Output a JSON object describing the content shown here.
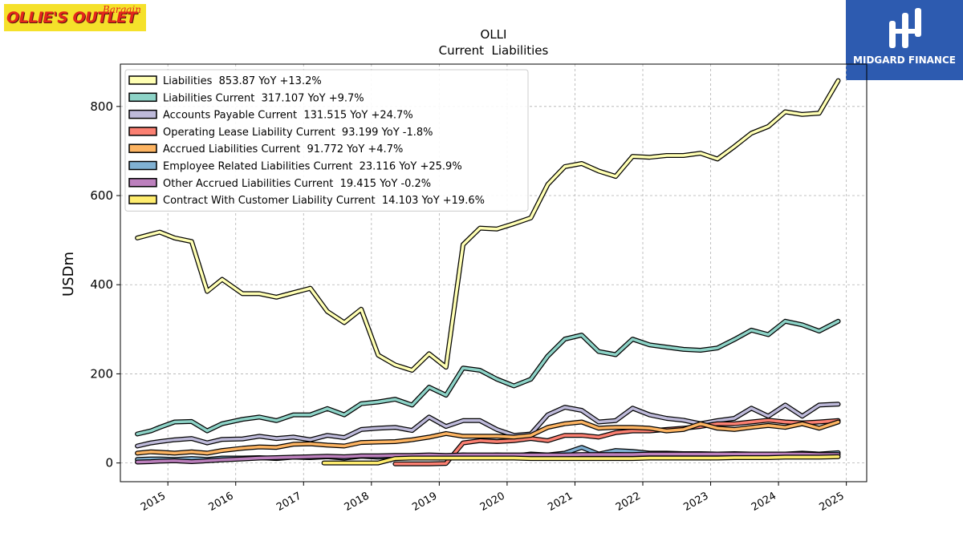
{
  "header": {
    "left_logo_main": "OLLIE'S OUTLET",
    "left_logo_script": "Bargain",
    "right_logo_name": "MIDGARD FINANCE"
  },
  "chart_data": {
    "type": "line",
    "title": "OLLI",
    "subtitle": "Current  Liabilities",
    "xlabel": "",
    "ylabel": "USDm",
    "xlim": [
      2014.3,
      2025.3
    ],
    "ylim": [
      -42,
      895
    ],
    "grid": true,
    "legend_position": "top-left",
    "x_ticks": [
      2015,
      2016,
      2017,
      2018,
      2019,
      2020,
      2021,
      2022,
      2023,
      2024,
      2025
    ],
    "x_tick_labels": [
      "2015",
      "2016",
      "2017",
      "2018",
      "2019",
      "2020",
      "2021",
      "2022",
      "2023",
      "2024",
      "2025"
    ],
    "y_ticks": [
      0,
      200,
      400,
      600,
      800
    ],
    "y_tick_labels": [
      "0",
      "200",
      "400",
      "600",
      "800"
    ],
    "series": [
      {
        "name": "Liabilities",
        "legend": "Liabilities  853.87 YoY +13.2%",
        "color": "#ffffb3",
        "x": [
          2014.55,
          2014.75,
          2014.88,
          2015.1,
          2015.35,
          2015.58,
          2015.8,
          2016.1,
          2016.35,
          2016.6,
          2016.85,
          2017.1,
          2017.35,
          2017.6,
          2017.85,
          2018.1,
          2018.35,
          2018.6,
          2018.85,
          2019.1,
          2019.35,
          2019.6,
          2019.85,
          2020.1,
          2020.35,
          2020.6,
          2020.85,
          2021.1,
          2021.35,
          2021.6,
          2021.85,
          2022.1,
          2022.35,
          2022.6,
          2022.85,
          2023.1,
          2023.35,
          2023.6,
          2023.85,
          2024.1,
          2024.35,
          2024.6,
          2024.88
        ],
        "y": [
          505,
          513,
          518,
          505,
          497,
          385,
          412,
          380,
          380,
          372,
          382,
          392,
          340,
          315,
          345,
          242,
          220,
          208,
          245,
          215,
          490,
          527,
          525,
          537,
          550,
          625,
          665,
          672,
          655,
          643,
          688,
          686,
          690,
          690,
          695,
          682,
          710,
          740,
          755,
          788,
          782,
          785,
          858
        ]
      },
      {
        "name": "Liabilities Current",
        "legend": "Liabilities Current  317.107 YoY +9.7%",
        "color": "#8dd3c7",
        "x": [
          2014.55,
          2014.75,
          2014.88,
          2015.1,
          2015.35,
          2015.58,
          2015.8,
          2016.1,
          2016.35,
          2016.6,
          2016.85,
          2017.1,
          2017.35,
          2017.6,
          2017.85,
          2018.1,
          2018.35,
          2018.6,
          2018.85,
          2019.1,
          2019.35,
          2019.6,
          2019.85,
          2020.1,
          2020.35,
          2020.6,
          2020.85,
          2021.1,
          2021.35,
          2021.6,
          2021.85,
          2022.1,
          2022.35,
          2022.6,
          2022.85,
          2023.1,
          2023.35,
          2023.6,
          2023.85,
          2024.1,
          2024.35,
          2024.6,
          2024.88
        ],
        "y": [
          65,
          72,
          80,
          92,
          93,
          72,
          88,
          98,
          103,
          95,
          108,
          108,
          122,
          108,
          133,
          137,
          143,
          130,
          170,
          152,
          213,
          208,
          188,
          173,
          188,
          240,
          278,
          287,
          250,
          243,
          278,
          265,
          260,
          255,
          253,
          258,
          277,
          298,
          288,
          318,
          310,
          296,
          318
        ]
      },
      {
        "name": "Accounts Payable Current",
        "legend": "Accounts Payable Current  131.515 YoY +24.7%",
        "color": "#bebada",
        "x": [
          2014.55,
          2014.75,
          2014.88,
          2015.1,
          2015.35,
          2015.58,
          2015.8,
          2016.1,
          2016.35,
          2016.6,
          2016.85,
          2017.1,
          2017.35,
          2017.6,
          2017.85,
          2018.1,
          2018.35,
          2018.6,
          2018.85,
          2019.1,
          2019.35,
          2019.6,
          2019.85,
          2020.1,
          2020.35,
          2020.6,
          2020.85,
          2021.1,
          2021.35,
          2021.6,
          2021.85,
          2022.1,
          2022.35,
          2022.6,
          2022.85,
          2023.1,
          2023.35,
          2023.6,
          2023.85,
          2024.1,
          2024.35,
          2024.6,
          2024.88
        ],
        "y": [
          38,
          45,
          48,
          52,
          55,
          45,
          53,
          54,
          60,
          55,
          58,
          52,
          62,
          57,
          75,
          78,
          80,
          73,
          103,
          82,
          95,
          95,
          75,
          62,
          65,
          108,
          125,
          118,
          92,
          95,
          123,
          108,
          100,
          96,
          88,
          95,
          100,
          123,
          105,
          130,
          105,
          130,
          132
        ]
      },
      {
        "name": "Operating Lease Liability Current",
        "legend": "Operating Lease Liability Current  93.199 YoY -1.8%",
        "color": "#fb8072",
        "x": [
          2018.35,
          2018.6,
          2018.85,
          2019.1,
          2019.35,
          2019.6,
          2019.85,
          2020.1,
          2020.35,
          2020.6,
          2020.85,
          2021.1,
          2021.35,
          2021.6,
          2021.85,
          2022.1,
          2022.35,
          2022.6,
          2022.85,
          2023.1,
          2023.35,
          2023.6,
          2023.85,
          2024.1,
          2024.35,
          2024.6,
          2024.88
        ],
        "y": [
          -2,
          -2,
          -2,
          -1,
          45,
          50,
          48,
          50,
          55,
          50,
          62,
          62,
          58,
          68,
          72,
          72,
          75,
          78,
          82,
          88,
          88,
          92,
          96,
          92,
          90,
          92,
          95
        ]
      },
      {
        "name": "Accrued Liabilities Current",
        "legend": "Accrued Liabilities Current  91.772 YoY +4.7%",
        "color": "#fdb462",
        "x": [
          2014.55,
          2014.75,
          2014.88,
          2015.1,
          2015.35,
          2015.58,
          2015.8,
          2016.1,
          2016.35,
          2016.6,
          2016.85,
          2017.1,
          2017.35,
          2017.6,
          2017.85,
          2018.1,
          2018.35,
          2018.6,
          2018.85,
          2019.1,
          2019.35,
          2019.6,
          2019.85,
          2020.1,
          2020.35,
          2020.6,
          2020.85,
          2021.1,
          2021.35,
          2021.6,
          2021.85,
          2022.1,
          2022.35,
          2022.6,
          2022.85,
          2023.1,
          2023.35,
          2023.6,
          2023.85,
          2024.1,
          2024.35,
          2024.6,
          2024.88
        ],
        "y": [
          22,
          25,
          24,
          22,
          25,
          22,
          28,
          33,
          36,
          35,
          42,
          43,
          40,
          38,
          46,
          47,
          48,
          52,
          58,
          66,
          60,
          60,
          60,
          58,
          62,
          80,
          88,
          92,
          78,
          80,
          80,
          78,
          72,
          75,
          88,
          78,
          75,
          80,
          84,
          80,
          88,
          78,
          92
        ]
      },
      {
        "name": "Employee Related Liabilities Current",
        "legend": "Employee Related Liabilities Current  23.116 YoY +25.9%",
        "color": "#80b1d3",
        "x": [
          2014.55,
          2014.75,
          2014.88,
          2015.1,
          2015.35,
          2015.58,
          2015.8,
          2016.1,
          2016.35,
          2016.6,
          2016.85,
          2017.1,
          2017.35,
          2017.6,
          2017.85,
          2018.1,
          2018.35,
          2018.6,
          2018.85,
          2019.1,
          2019.35,
          2019.6,
          2019.85,
          2020.1,
          2020.35,
          2020.6,
          2020.85,
          2021.1,
          2021.35,
          2021.6,
          2021.85,
          2022.1,
          2022.35,
          2022.6,
          2022.85,
          2023.1,
          2023.35,
          2023.6,
          2023.85,
          2024.1,
          2024.35,
          2024.6,
          2024.88
        ],
        "y": [
          8,
          9,
          9,
          8,
          10,
          8,
          11,
          11,
          12,
          10,
          13,
          12,
          14,
          11,
          15,
          13,
          15,
          12,
          16,
          14,
          18,
          15,
          18,
          16,
          20,
          18,
          22,
          35,
          20,
          28,
          26,
          22,
          22,
          21,
          21,
          20,
          21,
          20,
          19,
          20,
          22,
          20,
          23
        ]
      },
      {
        "name": "Other Accrued Liabilities Current",
        "legend": "Other Accrued Liabilities Current  19.415 YoY -0.2%",
        "color": "#bc80bd",
        "x": [
          2014.55,
          2014.75,
          2014.88,
          2015.1,
          2015.35,
          2015.58,
          2015.8,
          2016.1,
          2016.35,
          2016.6,
          2016.85,
          2017.1,
          2017.35,
          2017.6,
          2017.85,
          2018.1,
          2018.35,
          2018.6,
          2018.85,
          2019.1,
          2019.35,
          2019.6,
          2019.85,
          2020.1,
          2020.35,
          2020.6,
          2020.85,
          2021.1,
          2021.35,
          2021.6,
          2021.85,
          2022.1,
          2022.35,
          2022.6,
          2022.85,
          2023.1,
          2023.35,
          2023.6,
          2023.85,
          2024.1,
          2024.35,
          2024.6,
          2024.88
        ],
        "y": [
          2,
          3,
          4,
          5,
          3,
          5,
          7,
          9,
          11,
          12,
          13,
          14,
          15,
          14,
          16,
          16,
          17,
          17,
          18,
          17,
          18,
          18,
          18,
          18,
          18,
          18,
          18,
          19,
          19,
          19,
          19,
          20,
          20,
          20,
          20,
          20,
          20,
          20,
          20,
          20,
          20,
          19,
          19
        ]
      },
      {
        "name": "Contract With Customer Liability Current",
        "legend": "Contract With Customer Liability Current  14.103 YoY +19.6%",
        "color": "#ffed6f",
        "x": [
          2017.3,
          2017.6,
          2017.85,
          2018.1,
          2018.35,
          2018.6,
          2018.85,
          2019.1,
          2019.35,
          2019.6,
          2019.85,
          2020.1,
          2020.35,
          2020.6,
          2020.85,
          2021.1,
          2021.35,
          2021.6,
          2021.85,
          2022.1,
          2022.35,
          2022.6,
          2022.85,
          2023.1,
          2023.35,
          2023.6,
          2023.85,
          2024.1,
          2024.35,
          2024.6,
          2024.88
        ],
        "y": [
          0,
          0,
          0,
          0,
          10,
          11,
          11,
          11,
          11,
          11,
          11,
          11,
          10,
          10,
          10,
          10,
          10,
          10,
          10,
          11,
          11,
          11,
          11,
          11,
          12,
          12,
          12,
          13,
          13,
          13,
          14
        ]
      }
    ]
  }
}
